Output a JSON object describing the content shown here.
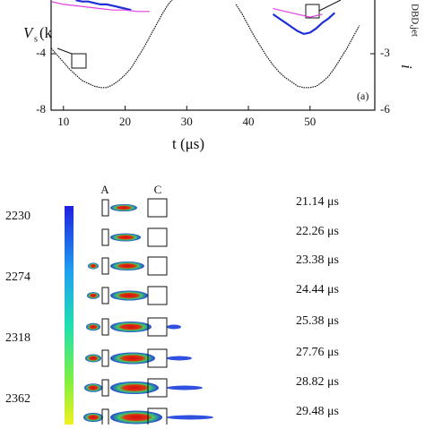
{
  "chart_data": {
    "type": "line",
    "y_label": "V",
    "y_label_sub": "s",
    "y_label_rest": " (k",
    "y2_label": "i",
    "y2_label_sub": "DBD,jet",
    "x_label": "t (μs)",
    "annotation": "(a)",
    "xlim": [
      8,
      60.5
    ],
    "xticks": [
      10,
      20,
      30,
      40,
      50
    ],
    "ylim": [
      -8,
      0
    ],
    "yticks": [
      -8,
      -4
    ],
    "y2lim": [
      -6,
      0
    ],
    "y2ticks": [
      -6,
      -3
    ],
    "series": [
      {
        "color": "#111111",
        "x": [
          8,
          9,
          10,
          11,
          12,
          13,
          14,
          15,
          16,
          17,
          18,
          19,
          20,
          21,
          22,
          23,
          24,
          25,
          26,
          27,
          28,
          null,
          38,
          39,
          40,
          41,
          42,
          43,
          44,
          45,
          46,
          47,
          48,
          49,
          50,
          51,
          52,
          53,
          54,
          55,
          56,
          57,
          58
        ],
        "values": [
          -3.6,
          -4.1,
          -4.6,
          -5.1,
          -5.5,
          -5.9,
          -6.1,
          -6.3,
          -6.4,
          -6.4,
          -6.2,
          -5.9,
          -5.5,
          -5.0,
          -4.3,
          -3.6,
          -2.8,
          -2.0,
          -1.2,
          -0.5,
          0.0,
          null,
          -0.5,
          -1.2,
          -2.0,
          -2.8,
          -3.5,
          -4.2,
          -4.8,
          -5.3,
          -5.7,
          -6.0,
          -6.3,
          -6.4,
          -6.4,
          -6.3,
          -6.0,
          -5.6,
          -5.0,
          -4.3,
          -3.6,
          -2.8,
          -2.0
        ]
      },
      {
        "color": "#1f2fd8",
        "x": [
          12,
          13,
          14,
          15,
          16,
          17,
          18,
          19,
          20,
          21,
          null,
          44,
          45,
          46,
          47,
          48,
          49,
          50,
          51,
          52,
          53,
          54
        ],
        "values": [
          -0.2,
          -0.3,
          -0.3,
          -0.4,
          -0.5,
          -0.5,
          -0.6,
          -0.7,
          -0.8,
          -0.9,
          null,
          -1.2,
          -1.5,
          -1.8,
          -2.1,
          -2.4,
          -2.6,
          -2.5,
          -2.2,
          -1.8,
          -1.5,
          -1.1
        ]
      },
      {
        "color": "#e040e0",
        "x": [
          8,
          10,
          12,
          14,
          16,
          18,
          20,
          22,
          24,
          null,
          44,
          46,
          48,
          50,
          52
        ],
        "values": [
          -0.3,
          -0.5,
          -0.6,
          -0.7,
          -0.8,
          -0.9,
          -0.9,
          -1.0,
          -1.0,
          null,
          -0.8,
          -1.0,
          -1.2,
          -1.4,
          -1.2
        ]
      }
    ]
  },
  "colorbar": {
    "labels": [
      "2230",
      "2274",
      "2318",
      "2362"
    ]
  },
  "electrodes": {
    "left": "A",
    "right": "C"
  },
  "frames": [
    "21.14 μs",
    "22.26 μs",
    "23.38 μs",
    "24.44 μs",
    "25.38 μs",
    "27.76 μs",
    "28.82 μs",
    "29.48 μs"
  ]
}
